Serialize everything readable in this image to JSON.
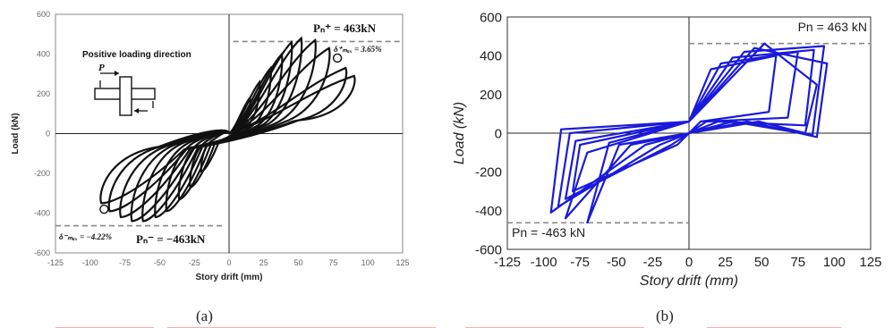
{
  "figure": {
    "caption_a": "(a)",
    "caption_b": "(b)"
  },
  "chart_data": [
    {
      "panel": "a",
      "type": "line",
      "xlabel": "Story drift (mm)",
      "ylabel": "Load (kN)",
      "xlim": [
        -125,
        125
      ],
      "ylim": [
        -600,
        600
      ],
      "xticks": [
        -125,
        -100,
        -75,
        -50,
        -25,
        0,
        25,
        50,
        75,
        100,
        125
      ],
      "yticks": [
        -600,
        -400,
        -200,
        0,
        200,
        400,
        600
      ],
      "grid": false,
      "line_color": "#111111",
      "annotations": {
        "inset_title": "Positive loading direction",
        "inset_arrow_label": "P",
        "pos_peak_label": "Pₙ⁺ = 463kN",
        "pos_drift_label": "δ⁺ₘₐₓ = 3.65%",
        "neg_peak_label": "Pₙ⁻ = −463kN",
        "neg_drift_label": "δ⁻ₘₐₓ = −4.22%",
        "pos_ref_load": 463,
        "neg_ref_load": -463
      },
      "cycles_positive_peaks": [
        [
          15,
          180
        ],
        [
          22,
          260
        ],
        [
          30,
          330
        ],
        [
          38,
          400
        ],
        [
          45,
          460
        ],
        [
          52,
          480
        ],
        [
          62,
          470
        ],
        [
          72,
          430
        ],
        [
          84,
          330
        ],
        [
          90,
          290
        ]
      ],
      "cycles_negative_peaks": [
        [
          -20,
          -190
        ],
        [
          -28,
          -270
        ],
        [
          -36,
          -330
        ],
        [
          -45,
          -390
        ],
        [
          -53,
          -420
        ],
        [
          -62,
          -440
        ],
        [
          -70,
          -440
        ],
        [
          -78,
          -420
        ],
        [
          -86,
          -390
        ],
        [
          -92,
          -350
        ]
      ],
      "end_markers": [
        [
          78,
          380
        ],
        [
          -90,
          -380
        ]
      ]
    },
    {
      "panel": "b",
      "type": "line",
      "xlabel": "Story drift (mm)",
      "ylabel": "Load (kN)",
      "xlim": [
        -125,
        125
      ],
      "ylim": [
        -600,
        600
      ],
      "xticks": [
        -125,
        -100,
        -75,
        -50,
        -25,
        0,
        25,
        50,
        75,
        100,
        125
      ],
      "yticks": [
        -600,
        -400,
        -200,
        0,
        200,
        400,
        600
      ],
      "grid": false,
      "line_color": "#1a1adb",
      "annotations": {
        "pos_ref_label": "Pn = 463 kN",
        "neg_ref_label": "Pn = -463 kN",
        "pos_ref_load": 463,
        "neg_ref_load": -463
      },
      "x": [
        0,
        15,
        60,
        55,
        8,
        -8,
        -80,
        -75,
        0,
        0,
        22,
        75,
        68,
        12,
        -12,
        -85,
        -78,
        0,
        0,
        30,
        86,
        80,
        20,
        -20,
        -90,
        -82,
        0,
        0,
        38,
        93,
        85,
        30,
        -30,
        -95,
        -88,
        0,
        0,
        45,
        95,
        88,
        40,
        -40,
        -85,
        -70,
        0,
        0,
        52,
        88,
        80,
        48,
        -48,
        -70,
        -55,
        0
      ],
      "y": [
        60,
        330,
        400,
        110,
        60,
        -60,
        -300,
        -60,
        60,
        60,
        360,
        420,
        80,
        60,
        -60,
        -340,
        -40,
        60,
        60,
        390,
        430,
        40,
        60,
        -60,
        -380,
        0,
        60,
        60,
        420,
        450,
        -10,
        60,
        -60,
        -410,
        20,
        60,
        60,
        440,
        360,
        -20,
        60,
        -60,
        -440,
        -100,
        60,
        60,
        463,
        250,
        0,
        60,
        -60,
        -463,
        -50,
        60
      ]
    }
  ]
}
